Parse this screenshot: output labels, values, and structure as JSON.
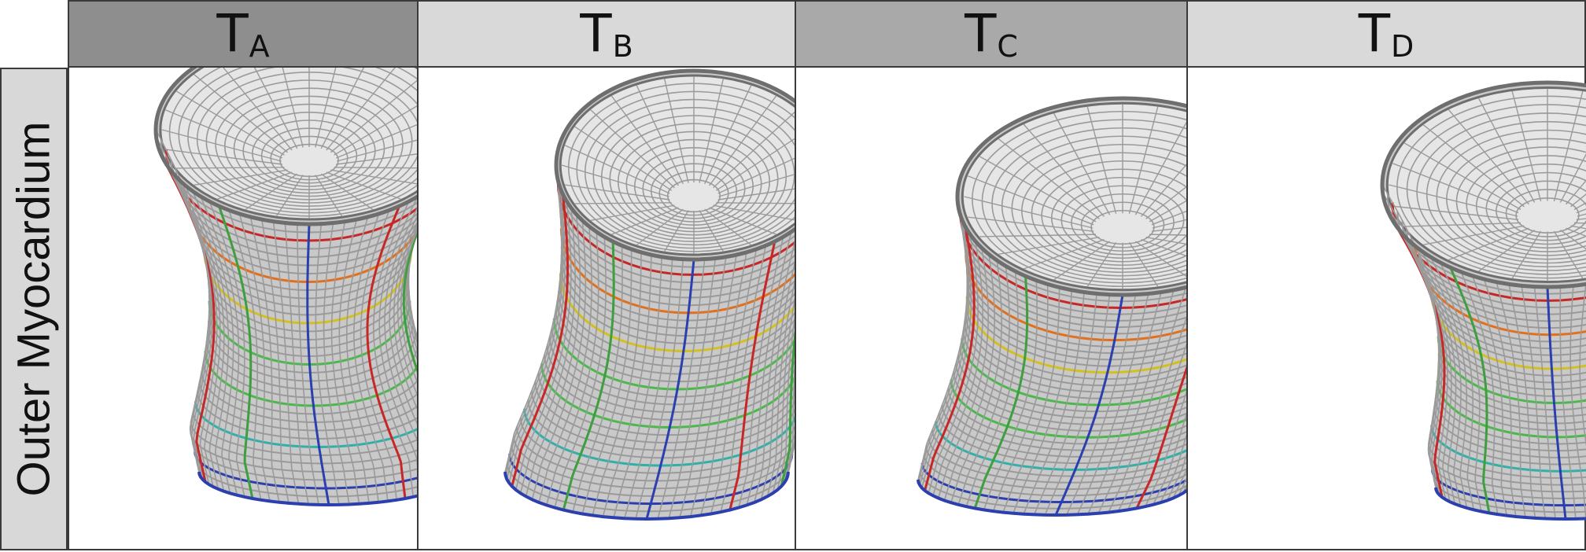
{
  "row_label": "Outer Myocardium",
  "columns": [
    {
      "main": "T",
      "sub": "A",
      "header_color": "#8e8e8e"
    },
    {
      "main": "T",
      "sub": "B",
      "header_color": "#d9d9d9"
    },
    {
      "main": "T",
      "sub": "C",
      "header_color": "#a9a9a9"
    },
    {
      "main": "T",
      "sub": "D",
      "header_color": "#d9d9d9"
    }
  ],
  "colors": {
    "mesh": "#9a9a9a",
    "mesh_dark": "#6e6e6e",
    "ring_colors": [
      "#c62828",
      "#e0701e",
      "#d4c01c",
      "#4cb84c",
      "#32b0a8",
      "#2c3fae"
    ],
    "meridian_colors": [
      "#3f9e3f",
      "#c62828",
      "#2c3fae"
    ]
  }
}
